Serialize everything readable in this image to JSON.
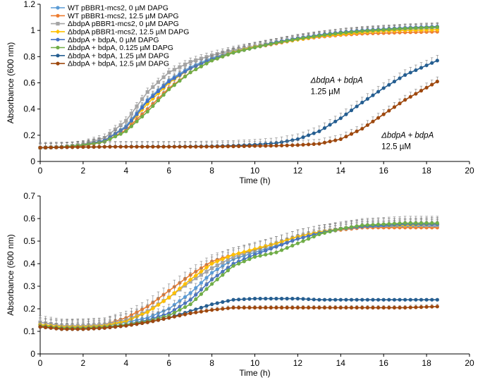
{
  "figure": {
    "title": ""
  },
  "chart_data": [
    {
      "type": "line",
      "title": "",
      "xlabel": "Time (h)",
      "ylabel": "Absorbance (600 nm)",
      "xlim": [
        0,
        20
      ],
      "ylim": [
        0,
        1.2
      ],
      "xticks": [
        0,
        2,
        4,
        6,
        8,
        10,
        12,
        14,
        16,
        18,
        20
      ],
      "xtick_labels": [
        "0",
        "2",
        "4",
        "6",
        "8",
        "10",
        "12",
        "14",
        "16",
        "18",
        "20"
      ],
      "yticks": [
        0,
        0.2,
        0.4,
        0.6,
        0.8,
        1,
        1.2
      ],
      "ytick_labels": [
        "0",
        "0.2",
        "0.4",
        "0.6",
        "0.8",
        "1",
        "1.2"
      ],
      "grid": false,
      "legend_position": "top-left",
      "annotations": [
        {
          "line1_italic": "ΔbdpA + bdpA",
          "line2": "1.25 µM",
          "near_x": 12.6,
          "near_y": 0.6
        },
        {
          "line1_italic": "ΔbdpA + bdpA",
          "line2": "12.5 µM",
          "near_x": 15.9,
          "near_y": 0.18
        }
      ],
      "series": [
        {
          "name": "WT pBBR1-mcs2, 0 µM DAPG",
          "color": "#5b9bd5",
          "marker": "circle",
          "x": [
            0,
            1,
            2,
            3,
            4,
            5,
            6,
            7,
            8,
            9,
            10,
            11,
            12,
            13,
            14,
            15,
            16,
            17,
            18.5
          ],
          "values": [
            0.105,
            0.11,
            0.125,
            0.16,
            0.27,
            0.47,
            0.62,
            0.72,
            0.79,
            0.84,
            0.88,
            0.91,
            0.94,
            0.96,
            0.98,
            0.995,
            1.005,
            1.01,
            1.02
          ],
          "err": 0.03
        },
        {
          "name": "WT pBBR1-mcs2, 12.5 µM DAPG",
          "color": "#ed7d31",
          "marker": "circle",
          "x": [
            0,
            1,
            2,
            3,
            4,
            5,
            6,
            7,
            8,
            9,
            10,
            11,
            12,
            13,
            14,
            15,
            16,
            17,
            18.5
          ],
          "values": [
            0.105,
            0.11,
            0.12,
            0.15,
            0.24,
            0.4,
            0.56,
            0.68,
            0.77,
            0.83,
            0.87,
            0.9,
            0.93,
            0.95,
            0.965,
            0.975,
            0.98,
            0.985,
            0.99
          ],
          "err": 0.03
        },
        {
          "name": "ΔbdpA pBBR1-mcs2, 0 µM DAPG",
          "color": "#a5a5a5",
          "marker": "square",
          "x": [
            0,
            1,
            2,
            3,
            4,
            5,
            6,
            7,
            8,
            9,
            10,
            11,
            12,
            13,
            14,
            15,
            16,
            17,
            18.5
          ],
          "values": [
            0.105,
            0.11,
            0.13,
            0.18,
            0.31,
            0.53,
            0.68,
            0.76,
            0.81,
            0.85,
            0.88,
            0.91,
            0.94,
            0.96,
            0.98,
            0.99,
            1.0,
            1.01,
            1.02
          ],
          "err": 0.03
        },
        {
          "name": "ΔbdpA pBBR1-mcs2, 12.5 µM DAPG",
          "color": "#ffc000",
          "marker": "diamond",
          "x": [
            0,
            1,
            2,
            3,
            4,
            5,
            6,
            7,
            8,
            9,
            10,
            11,
            12,
            13,
            14,
            15,
            16,
            17,
            18.5
          ],
          "values": [
            0.105,
            0.11,
            0.125,
            0.16,
            0.26,
            0.44,
            0.6,
            0.71,
            0.78,
            0.835,
            0.875,
            0.905,
            0.93,
            0.955,
            0.97,
            0.985,
            0.995,
            1.0,
            1.005
          ],
          "err": 0.03
        },
        {
          "name": "ΔbdpA + bdpA,  0 µM DAPG",
          "color": "#4472c4",
          "marker": "circle",
          "x": [
            0,
            1,
            2,
            3,
            4,
            5,
            6,
            7,
            8,
            9,
            10,
            11,
            12,
            13,
            14,
            15,
            16,
            17,
            18.5
          ],
          "values": [
            0.105,
            0.11,
            0.125,
            0.16,
            0.26,
            0.46,
            0.61,
            0.71,
            0.78,
            0.83,
            0.87,
            0.91,
            0.94,
            0.965,
            0.985,
            1.0,
            1.01,
            1.02,
            1.03
          ],
          "err": 0.03
        },
        {
          "name": "ΔbdpA + bdpA,  0.125 µM DAPG",
          "color": "#70ad47",
          "marker": "circle",
          "x": [
            0,
            1,
            2,
            3,
            4,
            5,
            6,
            7,
            8,
            9,
            10,
            11,
            12,
            13,
            14,
            15,
            16,
            17,
            18.5
          ],
          "values": [
            0.105,
            0.11,
            0.125,
            0.15,
            0.23,
            0.38,
            0.55,
            0.68,
            0.77,
            0.83,
            0.87,
            0.905,
            0.935,
            0.96,
            0.98,
            0.995,
            1.005,
            1.015,
            1.025
          ],
          "err": 0.03
        },
        {
          "name": "ΔbdpA + bdpA,  1.25 µM DAPG",
          "color": "#255e91",
          "marker": "circle",
          "x": [
            0,
            1,
            2,
            3,
            4,
            5,
            6,
            7,
            8,
            9,
            10,
            11,
            12,
            13,
            14,
            15,
            16,
            17,
            18.5
          ],
          "values": [
            0.105,
            0.108,
            0.11,
            0.112,
            0.113,
            0.113,
            0.113,
            0.114,
            0.116,
            0.12,
            0.128,
            0.14,
            0.17,
            0.23,
            0.33,
            0.45,
            0.56,
            0.66,
            0.77
          ],
          "err": 0.04
        },
        {
          "name": "ΔbdpA + bdpA,  12.5 µM DAPG",
          "color": "#9e480e",
          "marker": "circle",
          "x": [
            0,
            1,
            2,
            3,
            4,
            5,
            6,
            7,
            8,
            9,
            10,
            11,
            12,
            13,
            14,
            15,
            16,
            17,
            18.5
          ],
          "values": [
            0.105,
            0.108,
            0.11,
            0.112,
            0.112,
            0.112,
            0.112,
            0.112,
            0.113,
            0.115,
            0.118,
            0.12,
            0.125,
            0.135,
            0.17,
            0.25,
            0.36,
            0.47,
            0.61
          ],
          "err": 0.035
        }
      ]
    },
    {
      "type": "line",
      "title": "",
      "xlabel": "Time (h)",
      "ylabel": "Absorbance (600 nm)",
      "xlim": [
        0,
        20
      ],
      "ylim": [
        0,
        0.7
      ],
      "xticks": [
        0,
        2,
        4,
        6,
        8,
        10,
        12,
        14,
        16,
        18,
        20
      ],
      "xtick_labels": [
        "0",
        "2",
        "4",
        "6",
        "8",
        "10",
        "12",
        "14",
        "16",
        "18",
        "20"
      ],
      "yticks": [
        0,
        0.1,
        0.2,
        0.3,
        0.4,
        0.5,
        0.6,
        0.7
      ],
      "ytick_labels": [
        "0",
        "0.1",
        "0.2",
        "0.3",
        "0.4",
        "0.5",
        "0.6",
        "0.7"
      ],
      "grid": false,
      "series": [
        {
          "name": "WT pBBR1-mcs2, 0 µM DAPG",
          "color": "#5b9bd5",
          "marker": "circle",
          "x": [
            0,
            1,
            2,
            3,
            4,
            5,
            6,
            7,
            8,
            9,
            10,
            11,
            12,
            13,
            14,
            15,
            16,
            17,
            18.5
          ],
          "values": [
            0.12,
            0.115,
            0.12,
            0.125,
            0.14,
            0.16,
            0.2,
            0.27,
            0.36,
            0.42,
            0.45,
            0.48,
            0.51,
            0.535,
            0.55,
            0.56,
            0.565,
            0.565,
            0.565
          ],
          "err": 0.02
        },
        {
          "name": "WT pBBR1-mcs2, 12.5 µM DAPG",
          "color": "#ed7d31",
          "marker": "circle",
          "x": [
            0,
            1,
            2,
            3,
            4,
            5,
            6,
            7,
            8,
            9,
            10,
            11,
            12,
            13,
            14,
            15,
            16,
            17,
            18.5
          ],
          "values": [
            0.13,
            0.12,
            0.125,
            0.13,
            0.16,
            0.21,
            0.28,
            0.35,
            0.41,
            0.44,
            0.46,
            0.49,
            0.52,
            0.54,
            0.55,
            0.56,
            0.56,
            0.56,
            0.56
          ],
          "err": 0.03
        },
        {
          "name": "ΔbdpA pBBR1-mcs2, 0 µM DAPG",
          "color": "#a5a5a5",
          "marker": "square",
          "x": [
            0,
            1,
            2,
            3,
            4,
            5,
            6,
            7,
            8,
            9,
            10,
            11,
            12,
            13,
            14,
            15,
            16,
            17,
            18.5
          ],
          "values": [
            0.14,
            0.125,
            0.125,
            0.13,
            0.15,
            0.19,
            0.25,
            0.32,
            0.38,
            0.43,
            0.46,
            0.49,
            0.52,
            0.54,
            0.555,
            0.565,
            0.57,
            0.57,
            0.57
          ],
          "err": 0.03
        },
        {
          "name": "ΔbdpA pBBR1-mcs2, 12.5 µM DAPG",
          "color": "#ffc000",
          "marker": "diamond",
          "x": [
            0,
            1,
            2,
            3,
            4,
            5,
            6,
            7,
            8,
            9,
            10,
            11,
            12,
            13,
            14,
            15,
            16,
            17,
            18.5
          ],
          "values": [
            0.13,
            0.12,
            0.12,
            0.125,
            0.145,
            0.185,
            0.25,
            0.33,
            0.4,
            0.44,
            0.465,
            0.49,
            0.52,
            0.54,
            0.555,
            0.565,
            0.57,
            0.57,
            0.575
          ],
          "err": 0.03
        },
        {
          "name": "ΔbdpA + bdpA,  0 µM DAPG",
          "color": "#4472c4",
          "marker": "circle",
          "x": [
            0,
            1,
            2,
            3,
            4,
            5,
            6,
            7,
            8,
            9,
            10,
            11,
            12,
            13,
            14,
            15,
            16,
            17,
            18.5
          ],
          "values": [
            0.12,
            0.115,
            0.115,
            0.12,
            0.13,
            0.15,
            0.18,
            0.24,
            0.33,
            0.4,
            0.44,
            0.475,
            0.51,
            0.535,
            0.555,
            0.565,
            0.57,
            0.575,
            0.575
          ],
          "err": 0.02
        },
        {
          "name": "ΔbdpA + bdpA,  0.125 µM DAPG",
          "color": "#70ad47",
          "marker": "circle",
          "x": [
            0,
            1,
            2,
            3,
            4,
            5,
            6,
            7,
            8,
            9,
            10,
            11,
            12,
            13,
            14,
            15,
            16,
            17,
            18.5
          ],
          "values": [
            0.125,
            0.115,
            0.115,
            0.12,
            0.13,
            0.145,
            0.17,
            0.22,
            0.31,
            0.39,
            0.43,
            0.45,
            0.49,
            0.53,
            0.555,
            0.57,
            0.575,
            0.58,
            0.58
          ],
          "err": 0.03
        },
        {
          "name": "ΔbdpA + bdpA,  1.25 µM DAPG",
          "color": "#255e91",
          "marker": "circle",
          "x": [
            0,
            1,
            2,
            3,
            4,
            5,
            6,
            7,
            8,
            9,
            10,
            11,
            12,
            13,
            14,
            15,
            16,
            17,
            18.5
          ],
          "values": [
            0.12,
            0.11,
            0.11,
            0.115,
            0.125,
            0.14,
            0.16,
            0.19,
            0.22,
            0.24,
            0.245,
            0.245,
            0.245,
            0.24,
            0.24,
            0.24,
            0.24,
            0.24,
            0.24
          ],
          "err": 0.006
        },
        {
          "name": "ΔbdpA + bdpA,  12.5 µM DAPG",
          "color": "#9e480e",
          "marker": "circle",
          "x": [
            0,
            1,
            2,
            3,
            4,
            5,
            6,
            7,
            8,
            9,
            10,
            11,
            12,
            13,
            14,
            15,
            16,
            17,
            18.5
          ],
          "values": [
            0.12,
            0.11,
            0.11,
            0.115,
            0.125,
            0.14,
            0.16,
            0.18,
            0.195,
            0.205,
            0.205,
            0.205,
            0.205,
            0.205,
            0.205,
            0.205,
            0.205,
            0.205,
            0.21
          ],
          "err": 0.01
        }
      ]
    }
  ]
}
